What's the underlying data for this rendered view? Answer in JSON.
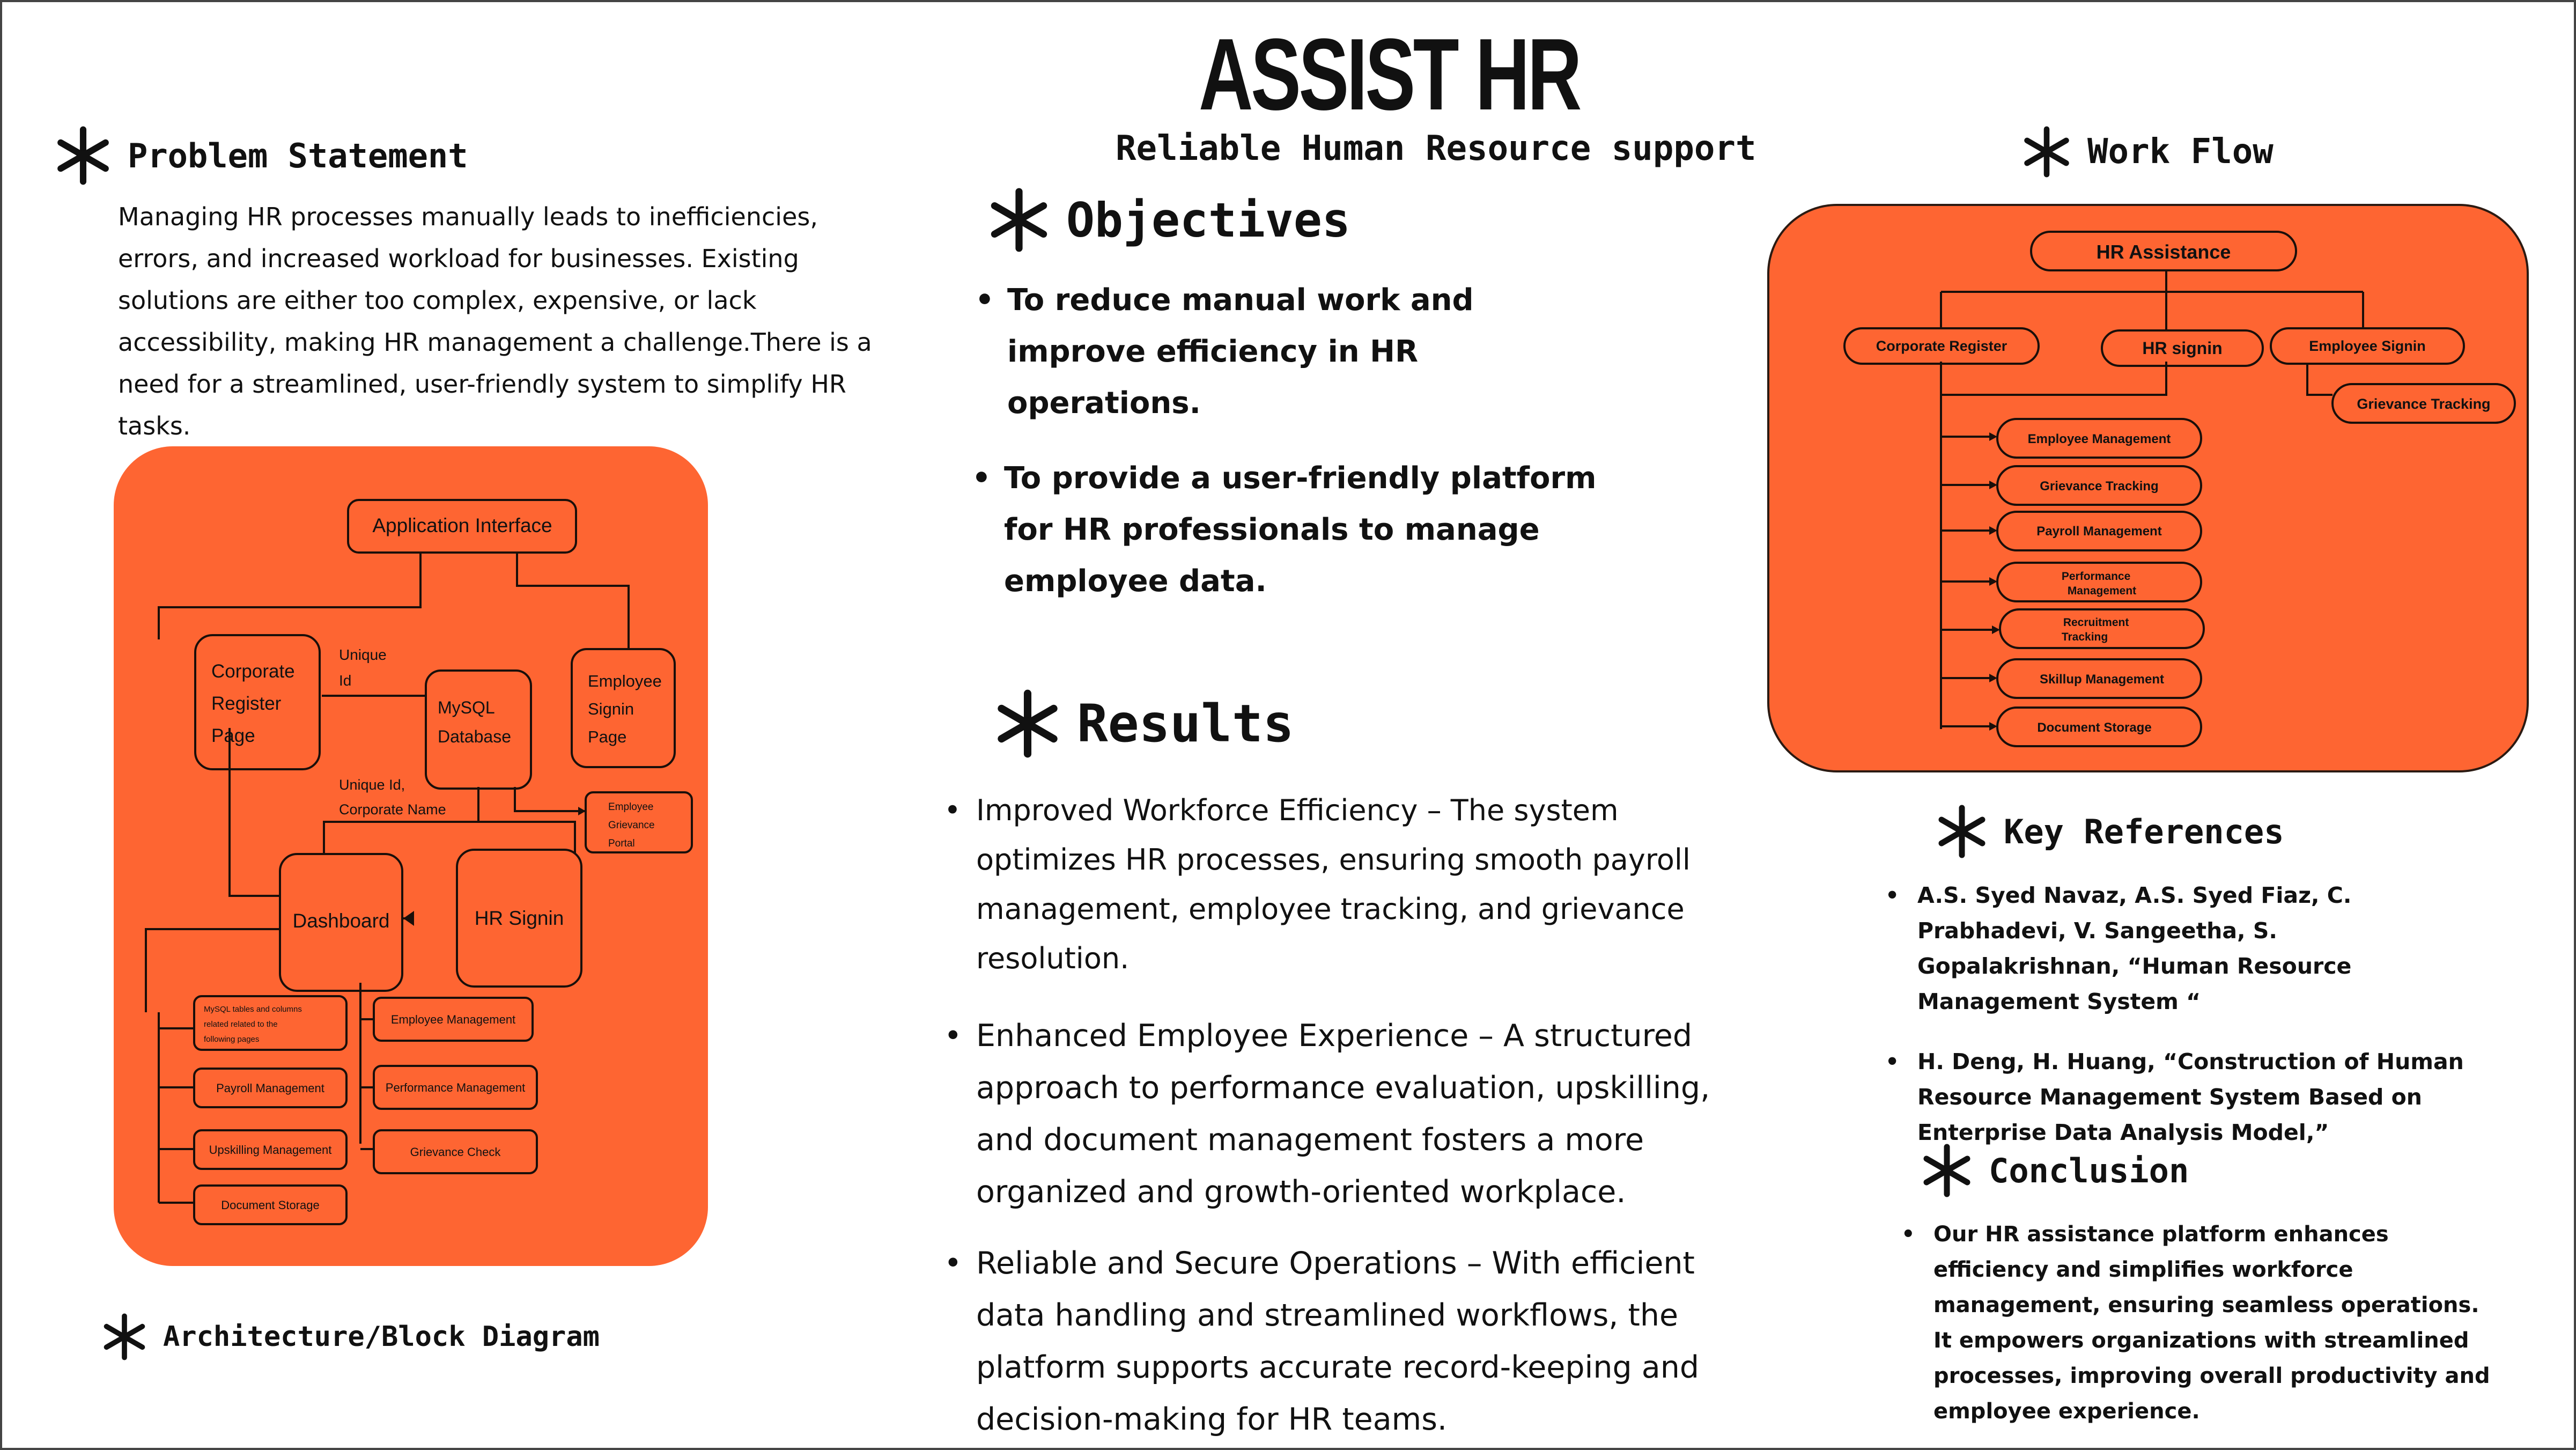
{
  "poster": {
    "title": "ASSIST HR",
    "subtitle": "Reliable Human Resource support"
  },
  "problem": {
    "heading": "Problem Statement",
    "text": "Managing HR processes manually leads to inefficiencies, errors, and increased workload for businesses. Existing solutions are either too complex, expensive, or lack accessibility, making HR management a challenge.There is a need for a streamlined, user-friendly system to simplify HR tasks."
  },
  "objectives": {
    "heading": "Objectives",
    "items": [
      "To reduce manual work and improve efficiency in HR operations.",
      "To provide a user-friendly platform for HR professionals to manage employee data."
    ]
  },
  "results": {
    "heading": "Results",
    "items": [
      "Improved Workforce Efficiency – The system optimizes HR processes, ensuring smooth payroll management, employee tracking, and grievance resolution.",
      "Enhanced Employee Experience – A structured approach to performance evaluation, upskilling, and document management fosters a more organized and growth-oriented workplace.",
      "Reliable and Secure Operations – With efficient data handling and streamlined workflows, the platform supports accurate record-keeping and decision-making for HR teams."
    ]
  },
  "workflow": {
    "heading": "Work Flow",
    "root": "HR Assistance",
    "level1": [
      "Corporate Register",
      "HR signin",
      "Employee Signin"
    ],
    "employee_child": "Grievance Tracking",
    "hr_children": [
      "Employee Management",
      "Grievance Tracking",
      "Payroll Management",
      "Performance Management",
      "Recruitment Tracking",
      "Skillup Management",
      "Document Storage"
    ]
  },
  "architecture": {
    "heading": "Architecture/Block Diagram",
    "app_interface": "Application Interface",
    "corporate_register": "Corporate Register Page",
    "unique_id": "Unique Id",
    "mysql": "MySQL Database",
    "employee_signin": "Employee Signin Page",
    "unique_corporate": "Unique Id, Corporate Name",
    "grievance_portal": "Employee Grievance Portal",
    "dashboard": "Dashboard",
    "hr_signin": "HR Signin",
    "mysql_tables": "MySQL tables and columns related related to the following pages",
    "left_items": [
      "Payroll Management",
      "Upskilling Management",
      "Document Storage"
    ],
    "right_items": [
      "Employee Management",
      "Performance Management",
      "Grievance Check"
    ]
  },
  "references": {
    "heading": "Key References",
    "items": [
      "A.S. Syed Navaz, A.S. Syed Fiaz, C. Prabhadevi, V. Sangeetha, S. Gopalakrishnan, “Human Resource Management System “",
      "H. Deng, H. Huang, “Construction of Human Resource Management System Based on Enterprise Data Analysis Model,”"
    ]
  },
  "conclusion": {
    "heading": "Conclusion",
    "text": "Our HR assistance platform enhances efficiency and simplifies workforce management, ensuring seamless operations. It empowers organizations with streamlined processes, improving overall productivity and employee experience."
  }
}
